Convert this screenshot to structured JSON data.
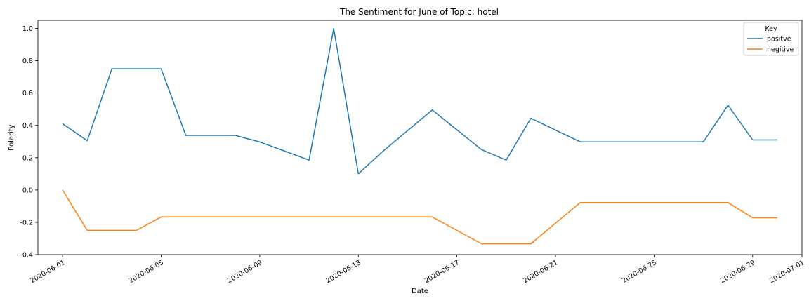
{
  "chart_data": {
    "type": "line",
    "title": "The Sentiment for June of Topic: hotel",
    "xlabel": "Date",
    "ylabel": "Polarity",
    "ylim": [
      -0.4,
      1.05
    ],
    "xlim": [
      "2020-05-31",
      "2020-07-01"
    ],
    "x_ticks": [
      "2020-06-01",
      "2020-06-05",
      "2020-06-09",
      "2020-06-13",
      "2020-06-17",
      "2020-06-21",
      "2020-06-25",
      "2020-06-29",
      "2020-07-01"
    ],
    "y_ticks": [
      "-0.4",
      "-0.2",
      "0.0",
      "0.2",
      "0.4",
      "0.6",
      "0.8",
      "1.0"
    ],
    "y_tick_values": [
      -0.4,
      -0.2,
      0.0,
      0.2,
      0.4,
      0.6,
      0.8,
      1.0
    ],
    "grid": false,
    "legend": {
      "title": "Key",
      "placement": "top-right"
    },
    "x": [
      "2020-06-01",
      "2020-06-02",
      "2020-06-03",
      "2020-06-04",
      "2020-06-05",
      "2020-06-06",
      "2020-06-08",
      "2020-06-09",
      "2020-06-11",
      "2020-06-12",
      "2020-06-13",
      "2020-06-14",
      "2020-06-16",
      "2020-06-18",
      "2020-06-19",
      "2020-06-20",
      "2020-06-22",
      "2020-06-27",
      "2020-06-28",
      "2020-06-29",
      "2020-06-30"
    ],
    "series": [
      {
        "name": "positve",
        "color": "#1f77b4",
        "values": [
          0.41,
          0.305,
          0.75,
          0.75,
          0.75,
          0.338,
          0.338,
          0.297,
          0.185,
          1.0,
          0.1,
          0.24,
          0.495,
          0.25,
          0.185,
          0.444,
          0.298,
          0.298,
          0.525,
          0.31,
          0.31
        ]
      },
      {
        "name": "negitive",
        "color": "#ff7f0e",
        "values": [
          0.0,
          -0.25,
          -0.25,
          -0.25,
          -0.167,
          -0.167,
          -0.167,
          -0.167,
          -0.167,
          -0.167,
          -0.167,
          -0.167,
          -0.167,
          -0.333,
          -0.333,
          -0.333,
          -0.078,
          -0.078,
          -0.078,
          -0.172,
          -0.172
        ]
      }
    ]
  }
}
